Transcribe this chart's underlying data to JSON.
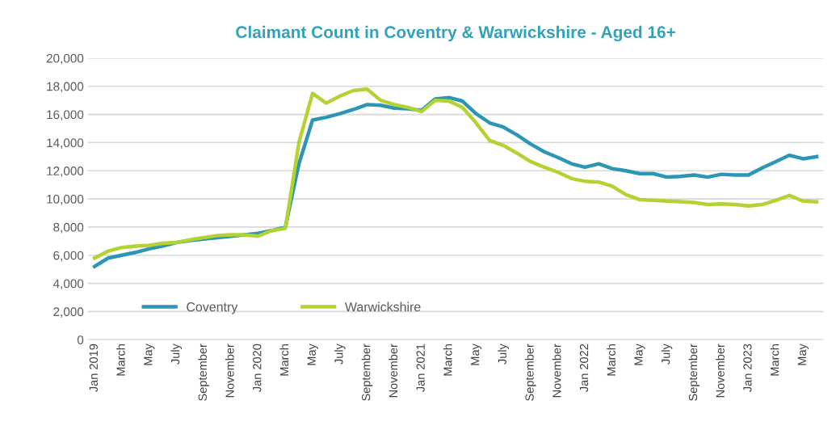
{
  "chart_data": {
    "type": "line",
    "title": "Claimant Count in Coventry & Warwickshire - Aged 16+",
    "categories": [
      "Jan 2019",
      null,
      "March",
      null,
      "May",
      null,
      "July",
      null,
      "September",
      null,
      "November",
      null,
      "Jan 2020",
      null,
      "March",
      null,
      "May",
      null,
      "July",
      null,
      "September",
      null,
      "November",
      null,
      "Jan 2021",
      null,
      "March",
      null,
      "May",
      null,
      "July",
      null,
      "September",
      null,
      "November",
      null,
      "Jan 2022",
      null,
      "March",
      null,
      "May",
      null,
      "July",
      null,
      "September",
      null,
      "November",
      null,
      "Jan 2023",
      null,
      "March",
      null,
      "May",
      null
    ],
    "series": [
      {
        "name": "Coventry",
        "color": "#2e96b5",
        "values": [
          5200,
          5800,
          6000,
          6200,
          6450,
          6650,
          6900,
          7050,
          7150,
          7250,
          7350,
          7450,
          7550,
          7750,
          8000,
          12500,
          15600,
          15800,
          16050,
          16350,
          16700,
          16650,
          16450,
          16400,
          16300,
          17100,
          17200,
          16950,
          16050,
          15400,
          15100,
          14550,
          13900,
          13350,
          12950,
          12500,
          12250,
          12500,
          12150,
          12000,
          11800,
          11800,
          11550,
          11600,
          11700,
          11550,
          11750,
          11700,
          11700,
          12200,
          12650,
          13100,
          12850,
          13000
        ]
      },
      {
        "name": "Warwickshire",
        "color": "#b3d334",
        "values": [
          5800,
          6300,
          6550,
          6650,
          6700,
          6850,
          6900,
          7100,
          7250,
          7400,
          7450,
          7450,
          7350,
          7750,
          7900,
          14000,
          17500,
          16800,
          17300,
          17700,
          17800,
          17000,
          16700,
          16500,
          16200,
          17000,
          16950,
          16500,
          15400,
          14150,
          13800,
          13250,
          12650,
          12250,
          11900,
          11450,
          11250,
          11200,
          10900,
          10300,
          9950,
          9900,
          9850,
          9800,
          9750,
          9600,
          9650,
          9600,
          9500,
          9600,
          9900,
          10250,
          9850,
          9800
        ]
      }
    ],
    "ylim": [
      0,
      20000
    ],
    "yticks": [
      {
        "value": 0,
        "label": "0"
      },
      {
        "value": 2000,
        "label": "2,000"
      },
      {
        "value": 4000,
        "label": "4,000"
      },
      {
        "value": 6000,
        "label": "6,000"
      },
      {
        "value": 8000,
        "label": "8,000"
      },
      {
        "value": 10000,
        "label": "10,000"
      },
      {
        "value": 12000,
        "label": "12,000"
      },
      {
        "value": 14000,
        "label": "14,000"
      },
      {
        "value": 16000,
        "label": "16,000"
      },
      {
        "value": 18000,
        "label": "18,000"
      },
      {
        "value": 20000,
        "label": "20,000"
      }
    ],
    "grid": "y",
    "legend": "lower left",
    "marker": "none",
    "line_style": "solid"
  }
}
